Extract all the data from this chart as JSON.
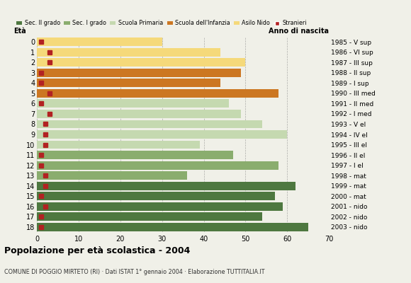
{
  "ages": [
    18,
    17,
    16,
    15,
    14,
    13,
    12,
    11,
    10,
    9,
    8,
    7,
    6,
    5,
    4,
    3,
    2,
    1,
    0
  ],
  "values": [
    65,
    54,
    59,
    57,
    62,
    36,
    58,
    47,
    39,
    60,
    54,
    49,
    46,
    58,
    44,
    49,
    50,
    44,
    30
  ],
  "stranieri": [
    1,
    1,
    2,
    1,
    2,
    2,
    1,
    1,
    2,
    2,
    2,
    3,
    1,
    3,
    1,
    1,
    3,
    3,
    1
  ],
  "bar_colors": [
    "#4e7840",
    "#4e7840",
    "#4e7840",
    "#4e7840",
    "#4e7840",
    "#8aad6e",
    "#8aad6e",
    "#8aad6e",
    "#c5d9b0",
    "#c5d9b0",
    "#c5d9b0",
    "#c5d9b0",
    "#c5d9b0",
    "#cc7722",
    "#cc7722",
    "#cc7722",
    "#f5d97a",
    "#f5d97a",
    "#f5d97a"
  ],
  "anno_di_nascita": [
    "1985 - V sup",
    "1986 - VI sup",
    "1987 - III sup",
    "1988 - II sup",
    "1989 - I sup",
    "1990 - III med",
    "1991 - II med",
    "1992 - I med",
    "1993 - V el",
    "1994 - IV el",
    "1995 - III el",
    "1996 - II el",
    "1997 - I el",
    "1998 - mat",
    "1999 - mat",
    "2000 - mat",
    "2001 - nido",
    "2002 - nido",
    "2003 - nido"
  ],
  "legend_labels": [
    "Sec. II grado",
    "Sec. I grado",
    "Scuola Primaria",
    "Scuola dell'Infanzia",
    "Asilo Nido",
    "Stranieri"
  ],
  "legend_colors": [
    "#4e7840",
    "#8aad6e",
    "#c5d9b0",
    "#cc7722",
    "#f5d97a",
    "#b22222"
  ],
  "title": "Popolazione per età scolastica - 2004",
  "subtitle": "COMUNE DI POGGIO MIRTETO (RI) · Dati ISTAT 1° gennaio 2004 · Elaborazione TUTTITALIA.IT",
  "ylabel_left": "Età",
  "ylabel_right": "Anno di nascita",
  "xlim": [
    0,
    70
  ],
  "xticks": [
    0,
    10,
    20,
    30,
    40,
    50,
    60,
    70
  ],
  "bg_color": "#f0f0e8",
  "stranieri_color": "#b22222",
  "stranieri_size": 4
}
